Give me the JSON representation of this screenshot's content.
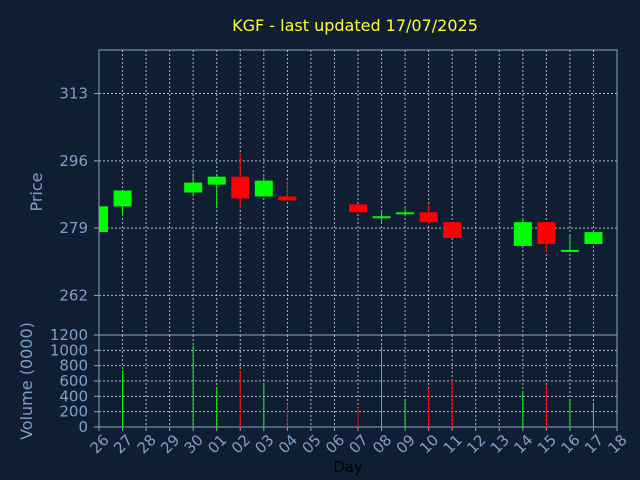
{
  "chart_data": {
    "type": "candlestick",
    "title": "KGF - last updated 17/07/2025",
    "xlabel": "Day",
    "ylabel_price": "Price",
    "ylabel_volume": "Volume (0000)",
    "price_ticks": [
      262,
      279,
      296,
      313
    ],
    "price_ylim": [
      252,
      324
    ],
    "volume_ticks": [
      0,
      200,
      400,
      600,
      800,
      1000,
      1200
    ],
    "volume_ylim": [
      0,
      1200
    ],
    "x_labels": [
      "26",
      "27",
      "28",
      "29",
      "30",
      "01",
      "02",
      "03",
      "04",
      "05",
      "06",
      "07",
      "08",
      "09",
      "10",
      "11",
      "12",
      "13",
      "14",
      "15",
      "16",
      "17",
      "18"
    ],
    "candles": [
      {
        "day": "26",
        "open": 278.0,
        "close": 284.5,
        "high": 284.5,
        "low": 278.0,
        "volume": 0
      },
      {
        "day": "27",
        "open": 284.5,
        "close": 288.5,
        "high": 288.5,
        "low": 282.0,
        "volume": 740
      },
      {
        "day": "30",
        "open": 288.0,
        "close": 290.5,
        "high": 293.0,
        "low": 287.0,
        "volume": 1060
      },
      {
        "day": "01",
        "open": 290.0,
        "close": 292.0,
        "high": 292.5,
        "low": 284.0,
        "volume": 520
      },
      {
        "day": "02",
        "open": 292.0,
        "close": 286.5,
        "high": 298.0,
        "low": 284.0,
        "volume": 740
      },
      {
        "day": "03",
        "open": 287.0,
        "close": 291.0,
        "high": 292.0,
        "low": 287.0,
        "volume": 560
      },
      {
        "day": "04",
        "open": 287.0,
        "close": 286.0,
        "high": 291.0,
        "low": 286.0,
        "volume": 300
      },
      {
        "day": "07",
        "open": 285.0,
        "close": 283.0,
        "high": 285.0,
        "low": 283.0,
        "volume": 250
      },
      {
        "day": "08",
        "open": 281.5,
        "close": 282.0,
        "high": 283.5,
        "low": 280.5,
        "volume": 1040
      },
      {
        "day": "09",
        "open": 282.5,
        "close": 283.0,
        "high": 284.0,
        "low": 282.0,
        "volume": 340
      },
      {
        "day": "10",
        "open": 283.0,
        "close": 280.5,
        "high": 285.0,
        "low": 280.0,
        "volume": 500
      },
      {
        "day": "11",
        "open": 280.5,
        "close": 276.5,
        "high": 280.5,
        "low": 276.5,
        "volume": 620
      },
      {
        "day": "14",
        "open": 274.5,
        "close": 280.5,
        "high": 281.5,
        "low": 274.5,
        "volume": 460
      },
      {
        "day": "15",
        "open": 280.5,
        "close": 275.0,
        "high": 280.5,
        "low": 273.0,
        "volume": 540
      },
      {
        "day": "16",
        "open": 273.0,
        "close": 273.5,
        "high": 277.0,
        "low": 273.0,
        "volume": 370
      },
      {
        "day": "17",
        "open": 275.0,
        "close": 278.0,
        "high": 278.5,
        "low": 275.0,
        "volume": 310
      }
    ],
    "colors": {
      "background": "#0f1e33",
      "axis": "#8fa3bf",
      "grid": "#c8d2dc",
      "tick_text": "#7fa0c8",
      "title": "#ffff33",
      "up": "#00ff00",
      "down": "#ff0000",
      "xlabel": "#000000"
    },
    "grid": true
  }
}
